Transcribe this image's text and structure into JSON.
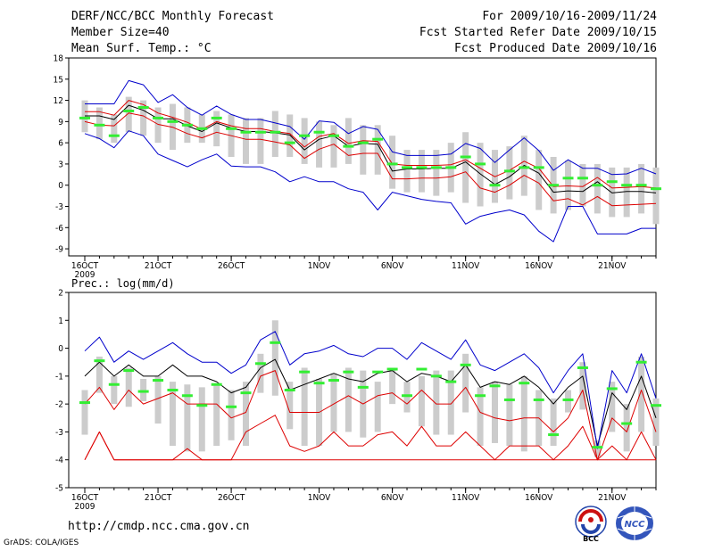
{
  "header": {
    "title": "DERF/NCC/BCC Monthly Forecast",
    "member_size": "Member Size=40",
    "variable": "Mean Surf. Temp.: °C",
    "forecast_period": "For 2009/10/16-2009/11/24",
    "refer_date": "Fcst Started Refer Date 2009/10/15",
    "produced_date": "Fcst Produced Date 2009/10/16"
  },
  "footer": {
    "url": "http://cmdp.ncc.cma.gov.cn",
    "grads_label": "GrADS: COLA/IGES",
    "logo_bcc_label": "BCC",
    "logo_ncc_label": "NCC"
  },
  "colors": {
    "box": "#cccccc",
    "dash": "#33ee33",
    "mean": "#000000",
    "spread": "#dd0000",
    "envelope": "#0000cc"
  },
  "chart_data": [
    {
      "type": "line",
      "title": "Mean Surf. Temp.: °C",
      "xlabel": "",
      "ylabel": "°C",
      "x": [
        1,
        2,
        3,
        4,
        5,
        6,
        7,
        8,
        9,
        10,
        11,
        12,
        13,
        14,
        15,
        16,
        17,
        18,
        19,
        20,
        21,
        22,
        23,
        24,
        25,
        26,
        27,
        28,
        29,
        30,
        31,
        32,
        33,
        34,
        35,
        36,
        37,
        38,
        39,
        40
      ],
      "x_ticks": [
        {
          "x": 1,
          "label": "16OCT"
        },
        {
          "x": 6,
          "label": "21OCT"
        },
        {
          "x": 11,
          "label": "26OCT"
        },
        {
          "x": 17,
          "label": "1NOV"
        },
        {
          "x": 22,
          "label": "6NOV"
        },
        {
          "x": 27,
          "label": "11NOV"
        },
        {
          "x": 32,
          "label": "16NOV"
        },
        {
          "x": 37,
          "label": "21NOV"
        }
      ],
      "year_label": "2009",
      "ylim": [
        -10,
        18
      ],
      "y_ticks": [
        -9,
        -6,
        -3,
        0,
        3,
        6,
        9,
        12,
        15,
        18
      ],
      "box_top": [
        12,
        11,
        10,
        12.5,
        12,
        11,
        11.5,
        11,
        10,
        10.5,
        10,
        9.5,
        9.5,
        10.5,
        10,
        9.5,
        9,
        8.5,
        9.5,
        8.5,
        8.5,
        7,
        5,
        5,
        5,
        6,
        7.5,
        6,
        5,
        5.5,
        7,
        5,
        4,
        3.5,
        3,
        3,
        2.5,
        2.5,
        3,
        2.5
      ],
      "box_bottom": [
        7.5,
        6.5,
        6,
        7.5,
        7,
        6,
        5,
        6,
        6,
        5.5,
        4,
        3,
        3,
        4,
        4,
        3,
        2.5,
        2.5,
        3,
        1.5,
        1.5,
        -0.5,
        -1,
        -1,
        -1.5,
        -1,
        -2.5,
        -3,
        -2.5,
        -2,
        -1.5,
        -3.5,
        -4,
        -3.5,
        -3,
        -4,
        -4.5,
        -4.5,
        -4,
        -5.5
      ],
      "median": [
        9.5,
        8.5,
        7,
        10.5,
        11,
        9.5,
        9,
        8.5,
        8,
        9.5,
        8,
        7.5,
        7.5,
        7.5,
        6,
        7,
        7.5,
        7,
        5.5,
        6,
        6.5,
        3,
        2.5,
        2.5,
        2.5,
        2.5,
        4,
        3,
        0,
        2,
        2.5,
        2.5,
        0,
        1,
        1,
        0,
        0.5,
        0,
        0,
        -0.5
      ],
      "series": [
        {
          "name": "ensemble mean",
          "color": "black",
          "values": [
            9.8,
            9.8,
            9.3,
            11.3,
            10.6,
            9.4,
            9.4,
            8.4,
            7.6,
            8.8,
            8.1,
            7.6,
            7.6,
            7.4,
            7.1,
            5.0,
            6.5,
            7.0,
            5.5,
            5.9,
            5.8,
            2.0,
            2.3,
            2.3,
            2.4,
            2.4,
            3.3,
            1.6,
            0.1,
            1.2,
            2.8,
            1.7,
            -1.0,
            -0.8,
            -0.9,
            0.5,
            -1.1,
            -0.9,
            -0.9,
            -1.1
          ]
        },
        {
          "name": "mean + spread",
          "color": "red",
          "values": [
            10.4,
            10.4,
            9.9,
            12.0,
            11.4,
            10.2,
            9.6,
            8.9,
            7.9,
            9.0,
            8.4,
            8.0,
            8.0,
            7.6,
            7.3,
            5.4,
            6.9,
            7.3,
            5.9,
            6.3,
            6.2,
            3.0,
            2.8,
            2.8,
            2.8,
            2.9,
            3.6,
            2.4,
            1.2,
            2.1,
            3.4,
            2.4,
            -0.2,
            -0.1,
            -0.2,
            1.1,
            -0.4,
            -0.3,
            -0.2,
            -0.4
          ]
        },
        {
          "name": "mean - spread",
          "color": "red",
          "values": [
            9.0,
            8.5,
            8.4,
            10.2,
            9.8,
            8.6,
            8.2,
            7.3,
            6.7,
            7.5,
            7.0,
            6.5,
            6.5,
            6.1,
            5.7,
            3.8,
            5.1,
            5.8,
            4.2,
            4.5,
            4.5,
            0.9,
            0.9,
            1.0,
            1.0,
            1.2,
            1.9,
            -0.4,
            -1.0,
            0.0,
            1.4,
            0.3,
            -2.2,
            -1.9,
            -2.8,
            -1.6,
            -2.9,
            -2.8,
            -2.7,
            -2.6
          ]
        },
        {
          "name": "ensemble max",
          "color": "blue",
          "values": [
            11.5,
            11.5,
            11.5,
            14.8,
            14.2,
            11.7,
            12.8,
            11.0,
            9.9,
            11.2,
            10.0,
            9.3,
            9.3,
            8.8,
            8.3,
            6.5,
            9.1,
            8.9,
            7.3,
            8.3,
            7.9,
            4.7,
            4.2,
            4.2,
            4.2,
            4.4,
            5.9,
            5.2,
            3.2,
            5.0,
            6.7,
            4.9,
            2.1,
            3.6,
            2.4,
            2.4,
            1.5,
            1.6,
            2.4,
            1.6
          ]
        },
        {
          "name": "ensemble min",
          "color": "blue",
          "values": [
            7.3,
            6.6,
            5.3,
            7.7,
            7.0,
            4.4,
            3.5,
            2.6,
            3.6,
            4.4,
            2.7,
            2.6,
            2.6,
            1.9,
            0.5,
            1.2,
            0.5,
            0.5,
            -0.5,
            -1.0,
            -3.5,
            -1.0,
            -1.5,
            -2.0,
            -2.3,
            -2.5,
            -5.5,
            -4.4,
            -3.9,
            -3.5,
            -4.2,
            -6.5,
            -8.0,
            -3.0,
            -3.0,
            -6.9,
            -6.9,
            -6.9,
            -6.1,
            -6.1
          ]
        }
      ]
    },
    {
      "type": "line",
      "title": "Prec.: log(mm/d)",
      "xlabel": "",
      "ylabel": "log(mm/d)",
      "x": [
        1,
        2,
        3,
        4,
        5,
        6,
        7,
        8,
        9,
        10,
        11,
        12,
        13,
        14,
        15,
        16,
        17,
        18,
        19,
        20,
        21,
        22,
        23,
        24,
        25,
        26,
        27,
        28,
        29,
        30,
        31,
        32,
        33,
        34,
        35,
        36,
        37,
        38,
        39,
        40
      ],
      "x_ticks": [
        {
          "x": 1,
          "label": "16OCT"
        },
        {
          "x": 6,
          "label": "21OCT"
        },
        {
          "x": 11,
          "label": "26OCT"
        },
        {
          "x": 17,
          "label": "1NOV"
        },
        {
          "x": 22,
          "label": "6NOV"
        },
        {
          "x": 27,
          "label": "11NOV"
        },
        {
          "x": 32,
          "label": "16NOV"
        },
        {
          "x": 37,
          "label": "21NOV"
        }
      ],
      "year_label": "2009",
      "ylim": [
        -5,
        2
      ],
      "y_ticks": [
        -5,
        -4,
        -3,
        -2,
        -1,
        0,
        1,
        2
      ],
      "box_top": [
        -1.5,
        -0.3,
        -1.0,
        -0.7,
        -1.1,
        -1.0,
        -1.2,
        -1.3,
        -1.4,
        -1.3,
        -1.5,
        -1.2,
        -0.2,
        1.0,
        -1.2,
        -0.7,
        -1.1,
        -0.9,
        -0.7,
        -0.8,
        -1.2,
        -0.7,
        -1.2,
        -1.0,
        -0.8,
        -0.8,
        -0.2,
        -1.4,
        -1.2,
        -1.3,
        -1.0,
        -1.5,
        -1.8,
        -1.5,
        -0.5,
        -3.3,
        -1.2,
        -2.0,
        -0.3,
        -1.8
      ],
      "box_bottom": [
        -3.1,
        -1.6,
        -2.0,
        -2.1,
        -1.9,
        -2.7,
        -3.5,
        -3.7,
        -3.7,
        -3.5,
        -3.3,
        -3.5,
        -1.6,
        -1.7,
        -2.9,
        -3.5,
        -3.5,
        -3.0,
        -3.0,
        -3.2,
        -3.0,
        -2.0,
        -2.3,
        -2.8,
        -3.1,
        -3.1,
        -2.3,
        -3.5,
        -3.4,
        -3.5,
        -3.7,
        -3.5,
        -3.5,
        -2.3,
        -2.2,
        -3.9,
        -3.0,
        -3.7,
        -3.0,
        -3.5
      ],
      "median": [
        -1.95,
        -0.45,
        -1.3,
        -0.8,
        -1.55,
        -1.15,
        -1.5,
        -1.7,
        -2.05,
        -1.3,
        -2.1,
        -1.6,
        -0.55,
        0.2,
        -1.5,
        -0.85,
        -1.25,
        -1.15,
        -0.85,
        -1.4,
        -0.85,
        -0.75,
        -1.7,
        -0.75,
        -1.0,
        -1.2,
        -0.6,
        -1.7,
        -1.35,
        -1.85,
        -1.25,
        -1.85,
        -3.1,
        -1.85,
        -0.7,
        -3.55,
        -1.45,
        -2.7,
        -0.5,
        -2.05
      ],
      "series": [
        {
          "name": "ensemble mean",
          "color": "black",
          "values": [
            -1.0,
            -0.5,
            -1.0,
            -0.6,
            -1.0,
            -1.0,
            -0.6,
            -1.0,
            -1.0,
            -1.2,
            -1.6,
            -1.4,
            -0.7,
            -0.4,
            -1.5,
            -1.3,
            -1.1,
            -0.9,
            -1.1,
            -1.2,
            -0.9,
            -0.8,
            -1.2,
            -0.9,
            -1.0,
            -1.2,
            -0.6,
            -1.4,
            -1.2,
            -1.3,
            -1.0,
            -1.4,
            -2.0,
            -1.4,
            -1.0,
            -3.5,
            -1.6,
            -2.2,
            -1.0,
            -2.5
          ]
        },
        {
          "name": "mean + spread",
          "color": "red",
          "values": [
            -2.0,
            -1.4,
            -2.2,
            -1.5,
            -2.0,
            -1.8,
            -1.6,
            -2.0,
            -2.0,
            -2.0,
            -2.5,
            -2.3,
            -1.0,
            -0.8,
            -2.3,
            -2.3,
            -2.3,
            -2.0,
            -1.7,
            -2.0,
            -1.7,
            -1.6,
            -2.0,
            -1.5,
            -2.0,
            -2.0,
            -1.4,
            -2.3,
            -2.5,
            -2.6,
            -2.5,
            -2.5,
            -3.0,
            -2.5,
            -1.5,
            -4.0,
            -2.5,
            -3.0,
            -1.5,
            -3.0
          ]
        },
        {
          "name": "mean - spread",
          "color": "red",
          "values": [
            -4.0,
            -3.0,
            -4.0,
            -4.0,
            -4.0,
            -4.0,
            -4.0,
            -3.6,
            -4.0,
            -4.0,
            -4.0,
            -3.0,
            -2.7,
            -2.4,
            -3.5,
            -3.7,
            -3.5,
            -3.0,
            -3.5,
            -3.5,
            -3.1,
            -3.0,
            -3.5,
            -2.8,
            -3.5,
            -3.5,
            -3.0,
            -3.5,
            -4.0,
            -3.5,
            -3.5,
            -3.5,
            -4.0,
            -3.5,
            -2.8,
            -4.0,
            -3.5,
            -4.0,
            -3.0,
            -4.0
          ]
        },
        {
          "name": "ensemble max",
          "color": "blue",
          "values": [
            -0.1,
            0.4,
            -0.5,
            -0.1,
            -0.4,
            -0.1,
            0.2,
            -0.2,
            -0.5,
            -0.5,
            -0.9,
            -0.6,
            0.3,
            0.6,
            -0.6,
            -0.2,
            -0.1,
            0.1,
            -0.2,
            -0.3,
            0.0,
            0.0,
            -0.4,
            0.2,
            -0.1,
            -0.4,
            0.3,
            -0.6,
            -0.8,
            -0.5,
            -0.2,
            -0.7,
            -1.6,
            -0.8,
            -0.2,
            -3.6,
            -0.8,
            -1.6,
            -0.2,
            -1.8
          ]
        },
        {
          "name": "ensemble min",
          "color": "red",
          "values": [
            -4.0,
            -3.0,
            -4.0,
            -4.0,
            -4.0,
            -4.0,
            -4.0,
            -4.0,
            -4.0,
            -4.0,
            -4.0,
            -4.0,
            -4.0,
            -4.0,
            -4.0,
            -4.0,
            -4.0,
            -4.0,
            -4.0,
            -4.0,
            -4.0,
            -4.0,
            -4.0,
            -4.0,
            -4.0,
            -4.0,
            -4.0,
            -4.0,
            -4.0,
            -4.0,
            -4.0,
            -4.0,
            -4.0,
            -4.0,
            -4.0,
            -4.0,
            -4.0,
            -4.0,
            -4.0,
            -4.0
          ]
        }
      ]
    }
  ]
}
